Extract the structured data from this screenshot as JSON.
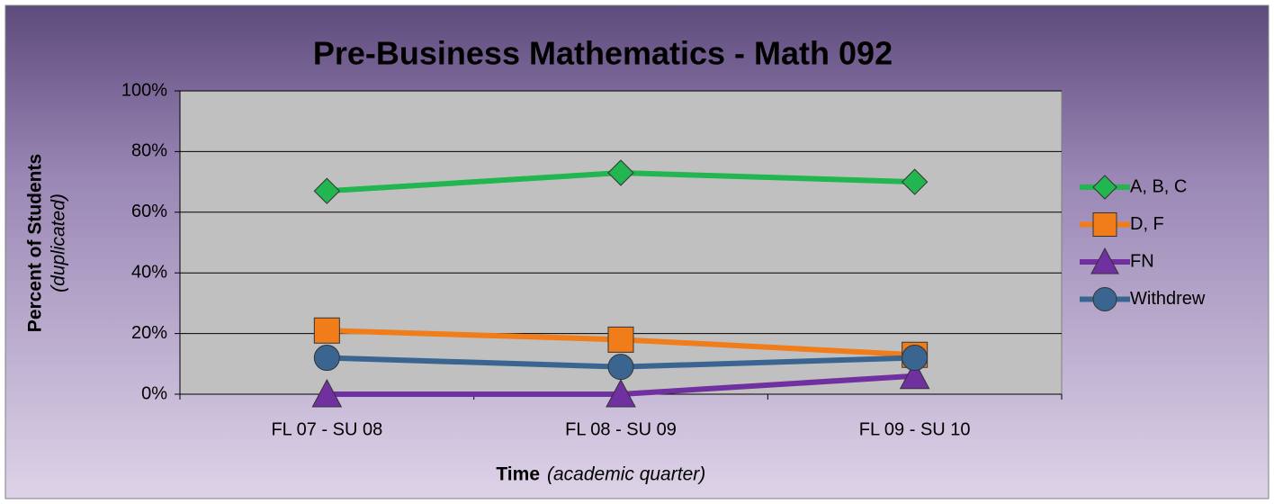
{
  "chart_data": {
    "type": "line",
    "title": "Pre-Business Mathematics - Math 092",
    "y_label": "Percent of Students",
    "y_label_note": "(duplicated)",
    "x_label": "Time",
    "x_label_note": "(academic quarter)",
    "categories": [
      "FL 07 - SU 08",
      "FL 08 - SU 09",
      "FL 09 - SU 10"
    ],
    "series": [
      {
        "name": "A, B, C",
        "color": "#22b550",
        "marker": "diamond",
        "values": [
          67,
          73,
          70
        ]
      },
      {
        "name": "D, F",
        "color": "#f07c1a",
        "marker": "square",
        "values": [
          21,
          18,
          13
        ]
      },
      {
        "name": "FN",
        "color": "#7030a0",
        "marker": "triangle",
        "values": [
          0,
          0,
          6
        ]
      },
      {
        "name": "Withdrew",
        "color": "#3a6590",
        "marker": "circle",
        "values": [
          12,
          9,
          12
        ]
      }
    ],
    "ylim": [
      0,
      100
    ],
    "yticks": [
      {
        "value": 0,
        "label": "0%"
      },
      {
        "value": 20,
        "label": "20%"
      },
      {
        "value": 40,
        "label": "40%"
      },
      {
        "value": 60,
        "label": "60%"
      },
      {
        "value": 80,
        "label": "80%"
      },
      {
        "value": 100,
        "label": "100%"
      }
    ],
    "grid": true,
    "legend": "right"
  }
}
